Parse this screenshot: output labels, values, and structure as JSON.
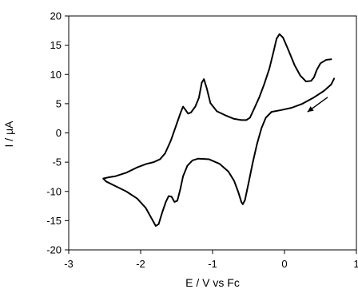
{
  "chart_data": {
    "type": "line",
    "title": "",
    "xlabel": "E / V vs Fc",
    "ylabel": "I / μA",
    "xlim": [
      -3,
      1
    ],
    "ylim": [
      -20,
      20
    ],
    "xticks": [
      -3,
      -2,
      -1,
      0,
      1
    ],
    "yticks": [
      -20,
      -15,
      -10,
      -5,
      0,
      5,
      10,
      15,
      20
    ],
    "xtick_labels": [
      "-3",
      "-2",
      "-1",
      "0",
      "1"
    ],
    "ytick_labels": [
      "-20",
      "-15",
      "-10",
      "-5",
      "0",
      "5",
      "10",
      "15",
      "20"
    ],
    "grid": false,
    "legend": "none",
    "series": [
      {
        "points": [
          [
            0.65,
            12.6
          ],
          [
            0.58,
            12.5
          ],
          [
            0.5,
            11.9
          ],
          [
            0.45,
            10.8
          ],
          [
            0.41,
            9.5
          ],
          [
            0.37,
            8.9
          ],
          [
            0.3,
            8.8
          ],
          [
            0.22,
            9.8
          ],
          [
            0.14,
            11.6
          ],
          [
            0.05,
            14.3
          ],
          [
            -0.02,
            16.3
          ],
          [
            -0.07,
            16.9
          ],
          [
            -0.11,
            16.1
          ],
          [
            -0.15,
            14.0
          ],
          [
            -0.21,
            11.0
          ],
          [
            -0.28,
            8.4
          ],
          [
            -0.35,
            6.1
          ],
          [
            -0.42,
            4.2
          ],
          [
            -0.48,
            2.6
          ],
          [
            -0.53,
            2.2
          ],
          [
            -0.6,
            2.2
          ],
          [
            -0.7,
            2.4
          ],
          [
            -0.82,
            3.0
          ],
          [
            -0.94,
            3.7
          ],
          [
            -1.03,
            5.1
          ],
          [
            -1.08,
            7.6
          ],
          [
            -1.12,
            9.2
          ],
          [
            -1.15,
            8.6
          ],
          [
            -1.19,
            6.0
          ],
          [
            -1.24,
            4.5
          ],
          [
            -1.3,
            3.5
          ],
          [
            -1.34,
            3.3
          ],
          [
            -1.38,
            4.0
          ],
          [
            -1.41,
            4.5
          ],
          [
            -1.44,
            3.6
          ],
          [
            -1.5,
            1.5
          ],
          [
            -1.58,
            -1.3
          ],
          [
            -1.66,
            -3.5
          ],
          [
            -1.73,
            -4.5
          ],
          [
            -1.82,
            -5.0
          ],
          [
            -1.92,
            -5.3
          ],
          [
            -2.05,
            -5.9
          ],
          [
            -2.2,
            -6.8
          ],
          [
            -2.35,
            -7.4
          ],
          [
            -2.45,
            -7.6
          ],
          [
            -2.52,
            -7.8
          ],
          [
            -2.48,
            -8.3
          ],
          [
            -2.35,
            -9.1
          ],
          [
            -2.2,
            -10.0
          ],
          [
            -2.05,
            -11.2
          ],
          [
            -1.93,
            -12.8
          ],
          [
            -1.84,
            -14.8
          ],
          [
            -1.79,
            -15.9
          ],
          [
            -1.75,
            -15.6
          ],
          [
            -1.7,
            -13.6
          ],
          [
            -1.65,
            -11.8
          ],
          [
            -1.61,
            -10.8
          ],
          [
            -1.57,
            -10.9
          ],
          [
            -1.53,
            -11.8
          ],
          [
            -1.49,
            -11.6
          ],
          [
            -1.45,
            -9.7
          ],
          [
            -1.41,
            -7.4
          ],
          [
            -1.35,
            -5.6
          ],
          [
            -1.28,
            -4.7
          ],
          [
            -1.2,
            -4.4
          ],
          [
            -1.05,
            -4.5
          ],
          [
            -0.9,
            -5.3
          ],
          [
            -0.78,
            -6.6
          ],
          [
            -0.7,
            -8.2
          ],
          [
            -0.64,
            -10.2
          ],
          [
            -0.6,
            -11.8
          ],
          [
            -0.58,
            -12.2
          ],
          [
            -0.55,
            -11.5
          ],
          [
            -0.5,
            -8.6
          ],
          [
            -0.44,
            -5.0
          ],
          [
            -0.38,
            -1.8
          ],
          [
            -0.32,
            0.8
          ],
          [
            -0.26,
            2.6
          ],
          [
            -0.18,
            3.6
          ],
          [
            -0.05,
            3.9
          ],
          [
            0.1,
            4.3
          ],
          [
            0.25,
            5.0
          ],
          [
            0.4,
            6.0
          ],
          [
            0.55,
            7.2
          ],
          [
            0.65,
            8.3
          ],
          [
            0.69,
            9.3
          ]
        ]
      }
    ],
    "annotations": [
      {
        "type": "arrow",
        "from": [
          0.6,
          6.1
        ],
        "to": [
          0.32,
          3.6
        ]
      }
    ]
  }
}
